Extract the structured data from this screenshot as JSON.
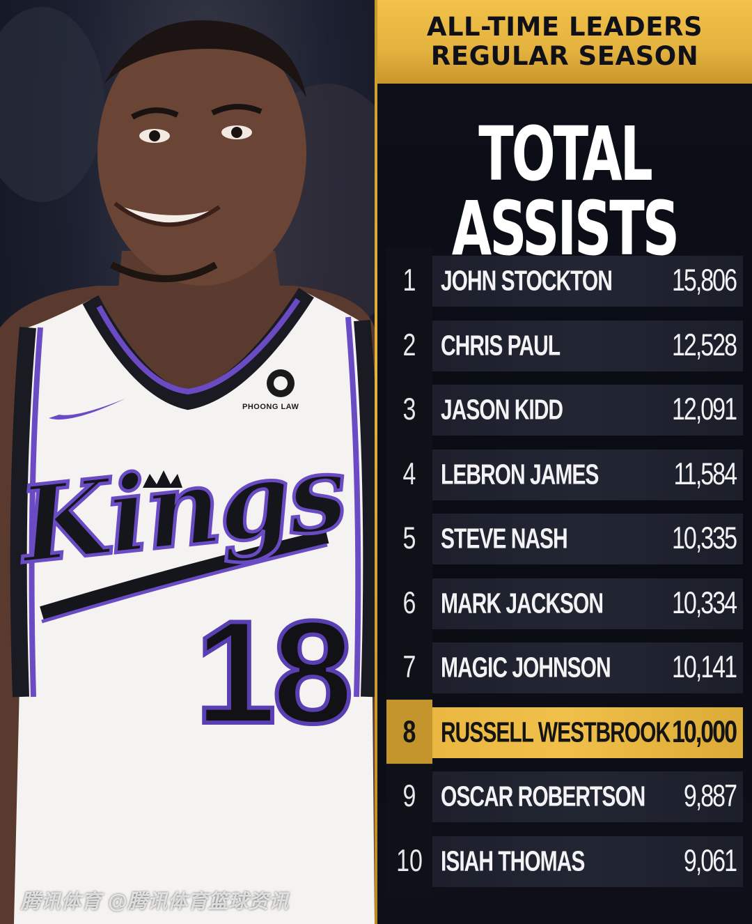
{
  "header": {
    "line1": "ALL-TIME LEADERS",
    "line2": "REGULAR SEASON"
  },
  "title": "TOTAL ASSISTS",
  "leaders": [
    {
      "rank": "1",
      "name": "JOHN STOCKTON",
      "value": "15,806"
    },
    {
      "rank": "2",
      "name": "CHRIS PAUL",
      "value": "12,528"
    },
    {
      "rank": "3",
      "name": "JASON KIDD",
      "value": "12,091"
    },
    {
      "rank": "4",
      "name": "LEBRON JAMES",
      "value": "11,584"
    },
    {
      "rank": "5",
      "name": "STEVE NASH",
      "value": "10,335"
    },
    {
      "rank": "6",
      "name": "MARK JACKSON",
      "value": "10,334"
    },
    {
      "rank": "7",
      "name": "MAGIC JOHNSON",
      "value": "10,141"
    },
    {
      "rank": "8",
      "name": "RUSSELL WESTBROOK",
      "value": "10,000",
      "highlight": true
    },
    {
      "rank": "9",
      "name": "OSCAR ROBERTSON",
      "value": "9,887"
    },
    {
      "rank": "10",
      "name": "ISIAH THOMAS",
      "value": "9,061"
    }
  ],
  "photo": {
    "jersey_script": "Kings",
    "jersey_number": "18",
    "sponsor": "PHOONG LAW"
  },
  "watermark": "腾讯体育 @腾讯体育篮球资讯",
  "colors": {
    "gold": "#f0c04a",
    "panel_bg": "#0c0f19",
    "row_bg": "#1f2230",
    "jersey_purple": "#6a4bc4"
  }
}
